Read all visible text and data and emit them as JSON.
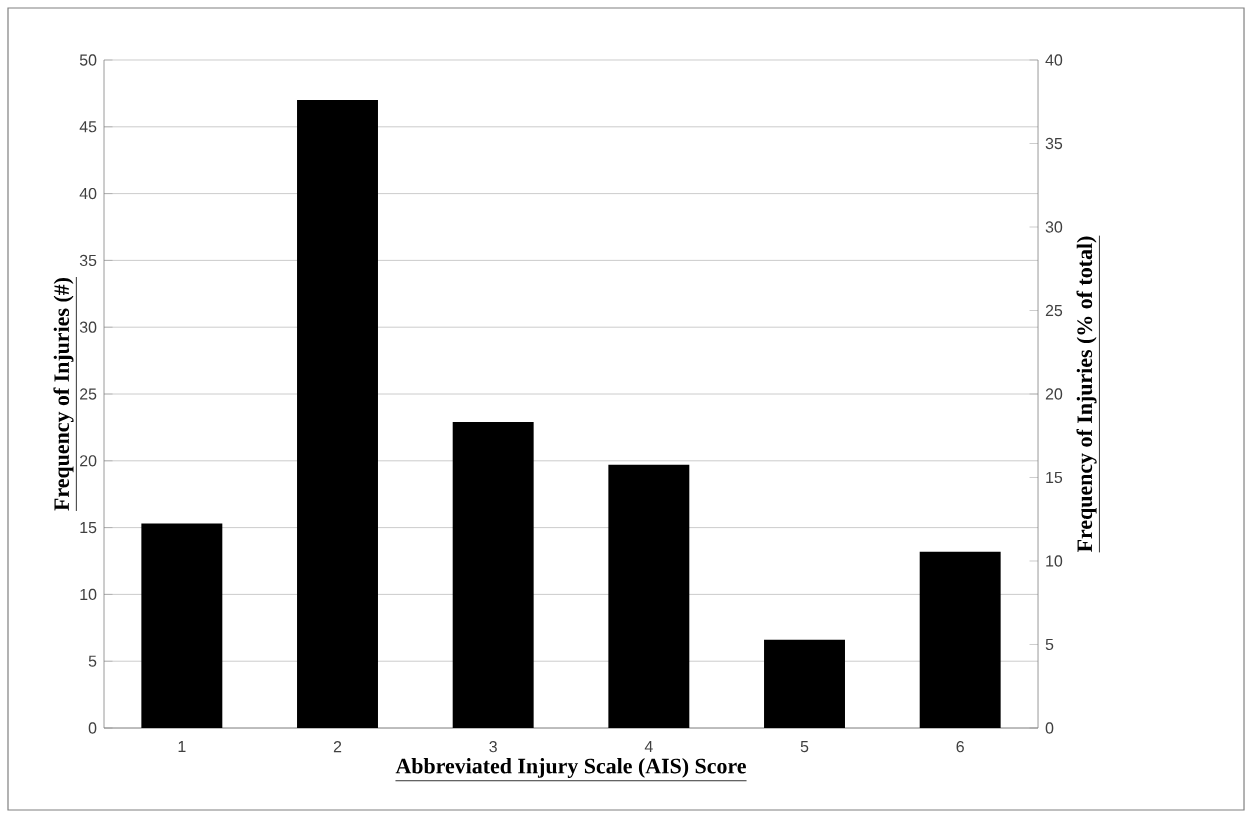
{
  "chart_data": {
    "type": "bar",
    "xlabel": "Abbreviated Injury Scale (AIS) Score",
    "ylabel": "Frequency of Injuries (#)",
    "y2label": "Frequency of Injuries (% of total)",
    "categories": [
      "1",
      "2",
      "3",
      "4",
      "5",
      "6"
    ],
    "values": [
      15.3,
      47.0,
      22.9,
      19.7,
      6.6,
      13.2
    ],
    "color": "#000000",
    "ylim": [
      0,
      50
    ],
    "yticks": [
      0,
      5,
      10,
      15,
      20,
      25,
      30,
      35,
      40,
      45,
      50
    ],
    "y2lim": [
      0,
      40
    ],
    "y2ticks": [
      0,
      5,
      10,
      15,
      20,
      25,
      30,
      35,
      40
    ],
    "grid": "y"
  }
}
